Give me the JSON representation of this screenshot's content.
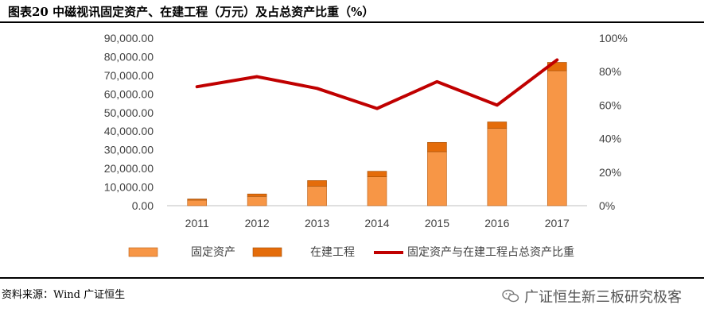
{
  "header": {
    "title": "图表20  中磁视讯固定资产、在建工程（万元）及占总资产比重（%）"
  },
  "footer": {
    "source": "资料来源：Wind  广证恒生"
  },
  "watermark": {
    "text": "广证恒生新三板研究极客",
    "icon": "wechat-icon"
  },
  "colors": {
    "fixed_assets": "#F79646",
    "construction": "#E46C0A",
    "ratio_line": "#C00000",
    "axis": "#BFBFBF"
  },
  "chart_data": {
    "type": "bar",
    "categories": [
      "2011",
      "2012",
      "2013",
      "2014",
      "2015",
      "2016",
      "2017"
    ],
    "series": [
      {
        "name": "固定资产",
        "kind": "bar-stacked",
        "axis": "left",
        "values": [
          3000,
          5000,
          10500,
          15500,
          29000,
          41500,
          72500
        ]
      },
      {
        "name": "在建工程",
        "kind": "bar-stacked",
        "axis": "left",
        "values": [
          600,
          1300,
          3000,
          3000,
          5000,
          3500,
          4500
        ]
      },
      {
        "name": "固定资产与在建工程占总资产比重",
        "kind": "line",
        "axis": "right",
        "values": [
          71,
          77,
          70,
          58,
          74,
          60,
          87
        ]
      }
    ],
    "y_left": {
      "min": 0,
      "max": 90000,
      "step": 10000,
      "tick_labels": [
        "0.00",
        "10,000.00",
        "20,000.00",
        "30,000.00",
        "40,000.00",
        "50,000.00",
        "60,000.00",
        "70,000.00",
        "80,000.00",
        "90,000.00"
      ]
    },
    "y_right": {
      "min": 0,
      "max": 100,
      "step": 20,
      "tick_labels": [
        "0%",
        "20%",
        "40%",
        "60%",
        "80%",
        "100%"
      ]
    },
    "grid": false,
    "legend": "bottom"
  }
}
